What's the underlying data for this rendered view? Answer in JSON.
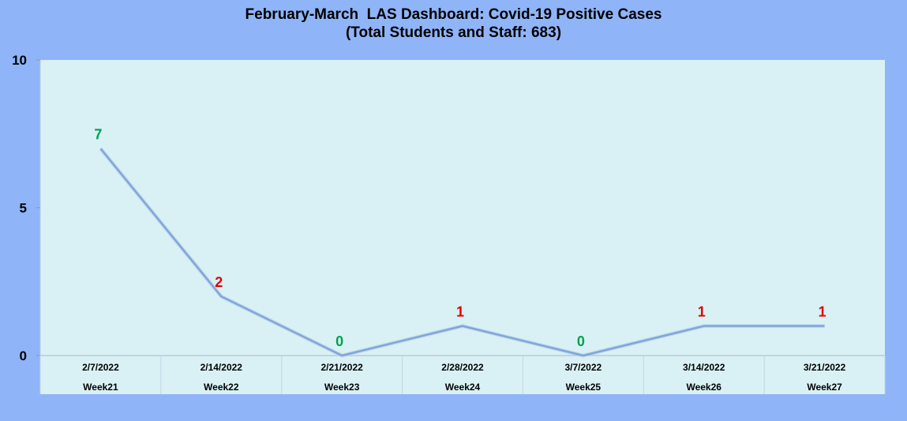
{
  "chart_data": {
    "type": "line",
    "title": "February-March  LAS Dashboard: Covid-19 Positive Cases",
    "subtitle": "(Total Students and Staff: 683)",
    "categories": [
      "2/7/2022",
      "2/14/2022",
      "2/21/2022",
      "2/28/2022",
      "3/7/2022",
      "3/14/2022",
      "3/21/2022"
    ],
    "category_sublabels": [
      "Week21",
      "Week22",
      "Week23",
      "Week24",
      "Week25",
      "Week26",
      "Week27"
    ],
    "values": [
      7,
      2,
      0,
      1,
      0,
      1,
      1
    ],
    "y_ticks": [
      "0",
      "5",
      "10"
    ],
    "ylim": [
      0,
      10
    ],
    "grid": false,
    "legend": "none",
    "colors": {
      "plot_background": "#d9f1f4",
      "page_background": "#8fb4f8",
      "line": "#7ea6dc",
      "label_green": "#00a050",
      "label_red": "#e00000"
    }
  }
}
